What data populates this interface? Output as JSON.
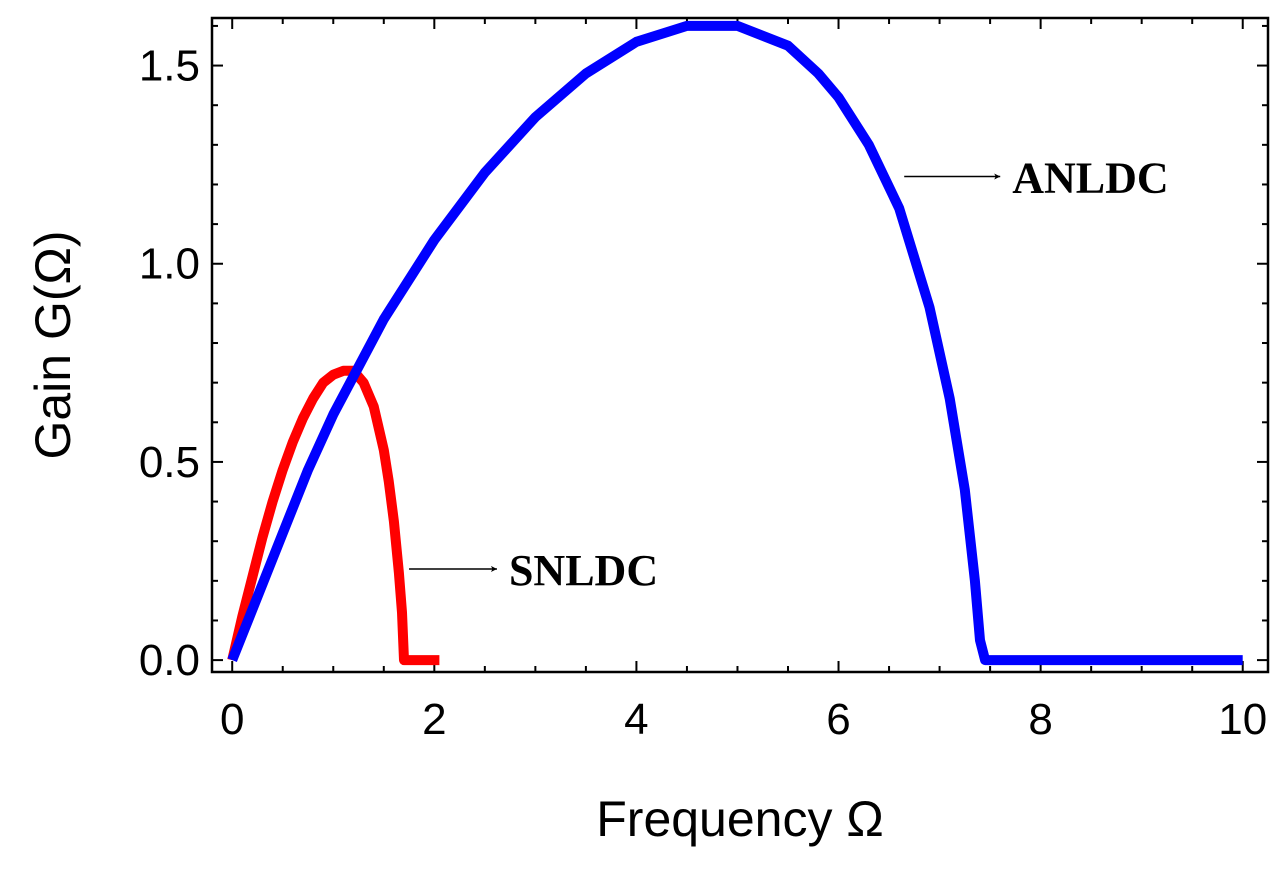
{
  "chart_data": {
    "type": "line",
    "xlabel": "Frequency Ω",
    "ylabel": "Gain G(Ω)",
    "xlim": [
      -0.2,
      10.25
    ],
    "ylim": [
      -0.03,
      1.62
    ],
    "xticks": [
      0,
      2,
      4,
      6,
      8,
      10
    ],
    "xtick_labels": [
      "0",
      "2",
      "4",
      "6",
      "8",
      "10"
    ],
    "yticks": [
      0.0,
      0.5,
      1.0,
      1.5
    ],
    "ytick_labels": [
      "0.0",
      "0.5",
      "1.0",
      "1.5"
    ],
    "grid": false,
    "series": [
      {
        "name": "SNLDC",
        "color": "#ff0000",
        "x": [
          0,
          0.1,
          0.2,
          0.3,
          0.4,
          0.5,
          0.6,
          0.7,
          0.8,
          0.9,
          1.0,
          1.1,
          1.2,
          1.3,
          1.4,
          1.5,
          1.55,
          1.6,
          1.65,
          1.68,
          1.7,
          1.75,
          1.85,
          1.95,
          2.05
        ],
        "y": [
          0,
          0.11,
          0.21,
          0.31,
          0.4,
          0.48,
          0.55,
          0.61,
          0.66,
          0.7,
          0.72,
          0.73,
          0.73,
          0.7,
          0.64,
          0.53,
          0.45,
          0.35,
          0.22,
          0.12,
          0,
          0,
          0,
          0,
          0
        ]
      },
      {
        "name": "ANLDC",
        "color": "#0000ff",
        "x": [
          0,
          0.25,
          0.5,
          0.75,
          1.0,
          1.5,
          2.0,
          2.5,
          3.0,
          3.5,
          4.0,
          4.5,
          5.0,
          5.5,
          5.8,
          6.0,
          6.3,
          6.6,
          6.9,
          7.1,
          7.25,
          7.35,
          7.4,
          7.45,
          8.0,
          9.0,
          10.0
        ],
        "y": [
          0,
          0.16,
          0.32,
          0.48,
          0.62,
          0.86,
          1.06,
          1.23,
          1.37,
          1.48,
          1.56,
          1.6,
          1.6,
          1.55,
          1.48,
          1.42,
          1.3,
          1.14,
          0.89,
          0.66,
          0.43,
          0.2,
          0.05,
          0,
          0,
          0,
          0
        ]
      }
    ],
    "annotations": [
      {
        "text": "SNLDC",
        "arrow_from": [
          1.75,
          0.23
        ],
        "arrow_to": [
          2.62,
          0.23
        ]
      },
      {
        "text": "ANLDC",
        "arrow_from": [
          6.65,
          1.22
        ],
        "arrow_to": [
          7.6,
          1.22
        ]
      }
    ]
  }
}
